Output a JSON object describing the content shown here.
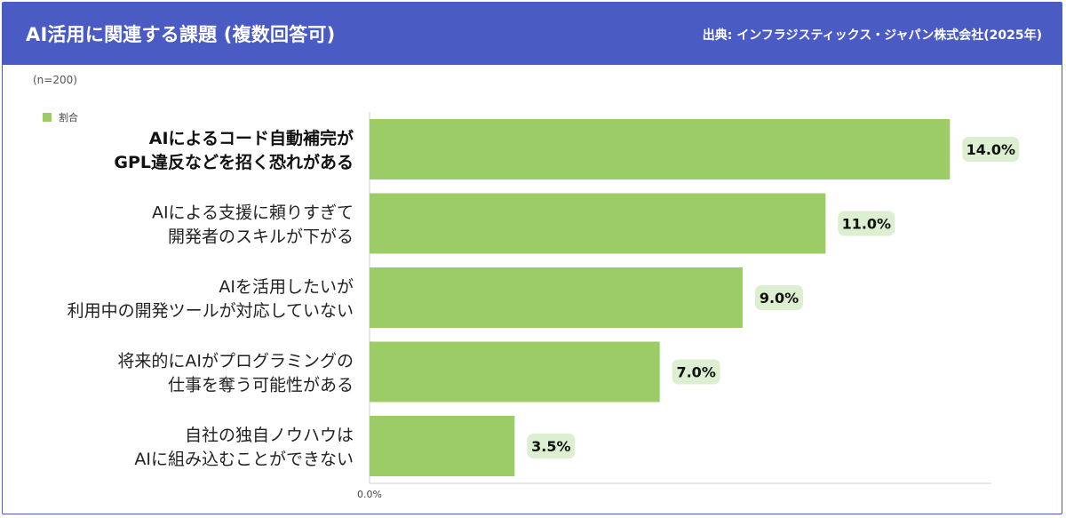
{
  "header": {
    "title": "AI活用に関連する課題 (複数回答可)",
    "source": "出典: インフラジスティックス・ジャパン株式会社(2025年)"
  },
  "sample": "(n=200)",
  "colors": {
    "header_bg": "#4a5bc4",
    "bar": "#9ccc65",
    "value_label_bg": "#dcefd0"
  },
  "chart_data": {
    "type": "bar",
    "orientation": "horizontal",
    "legend": {
      "entries": [
        "割合"
      ],
      "placement": "top-left"
    },
    "categories": [
      [
        "AIによるコード自動補完が",
        "GPL違反などを招く恐れがある"
      ],
      [
        "AIによる支援に頼りすぎて",
        "開発者のスキルが下がる"
      ],
      [
        "AIを活用したいが",
        "利用中の開発ツールが対応していない"
      ],
      [
        "将来的にAIがプログラミングの",
        "仕事を奪う可能性がある"
      ],
      [
        "自社の独自ノウハウは",
        "AIに組み込むことができない"
      ]
    ],
    "series": [
      {
        "name": "割合",
        "values": [
          14.0,
          11.0,
          9.0,
          7.0,
          3.5
        ]
      }
    ],
    "value_labels": [
      "14.0%",
      "11.0%",
      "9.0%",
      "7.0%",
      "3.5%"
    ],
    "x_ticks": [
      "0.0%"
    ],
    "highlight_index": 0,
    "xlim": [
      0,
      15
    ],
    "grid": false
  }
}
